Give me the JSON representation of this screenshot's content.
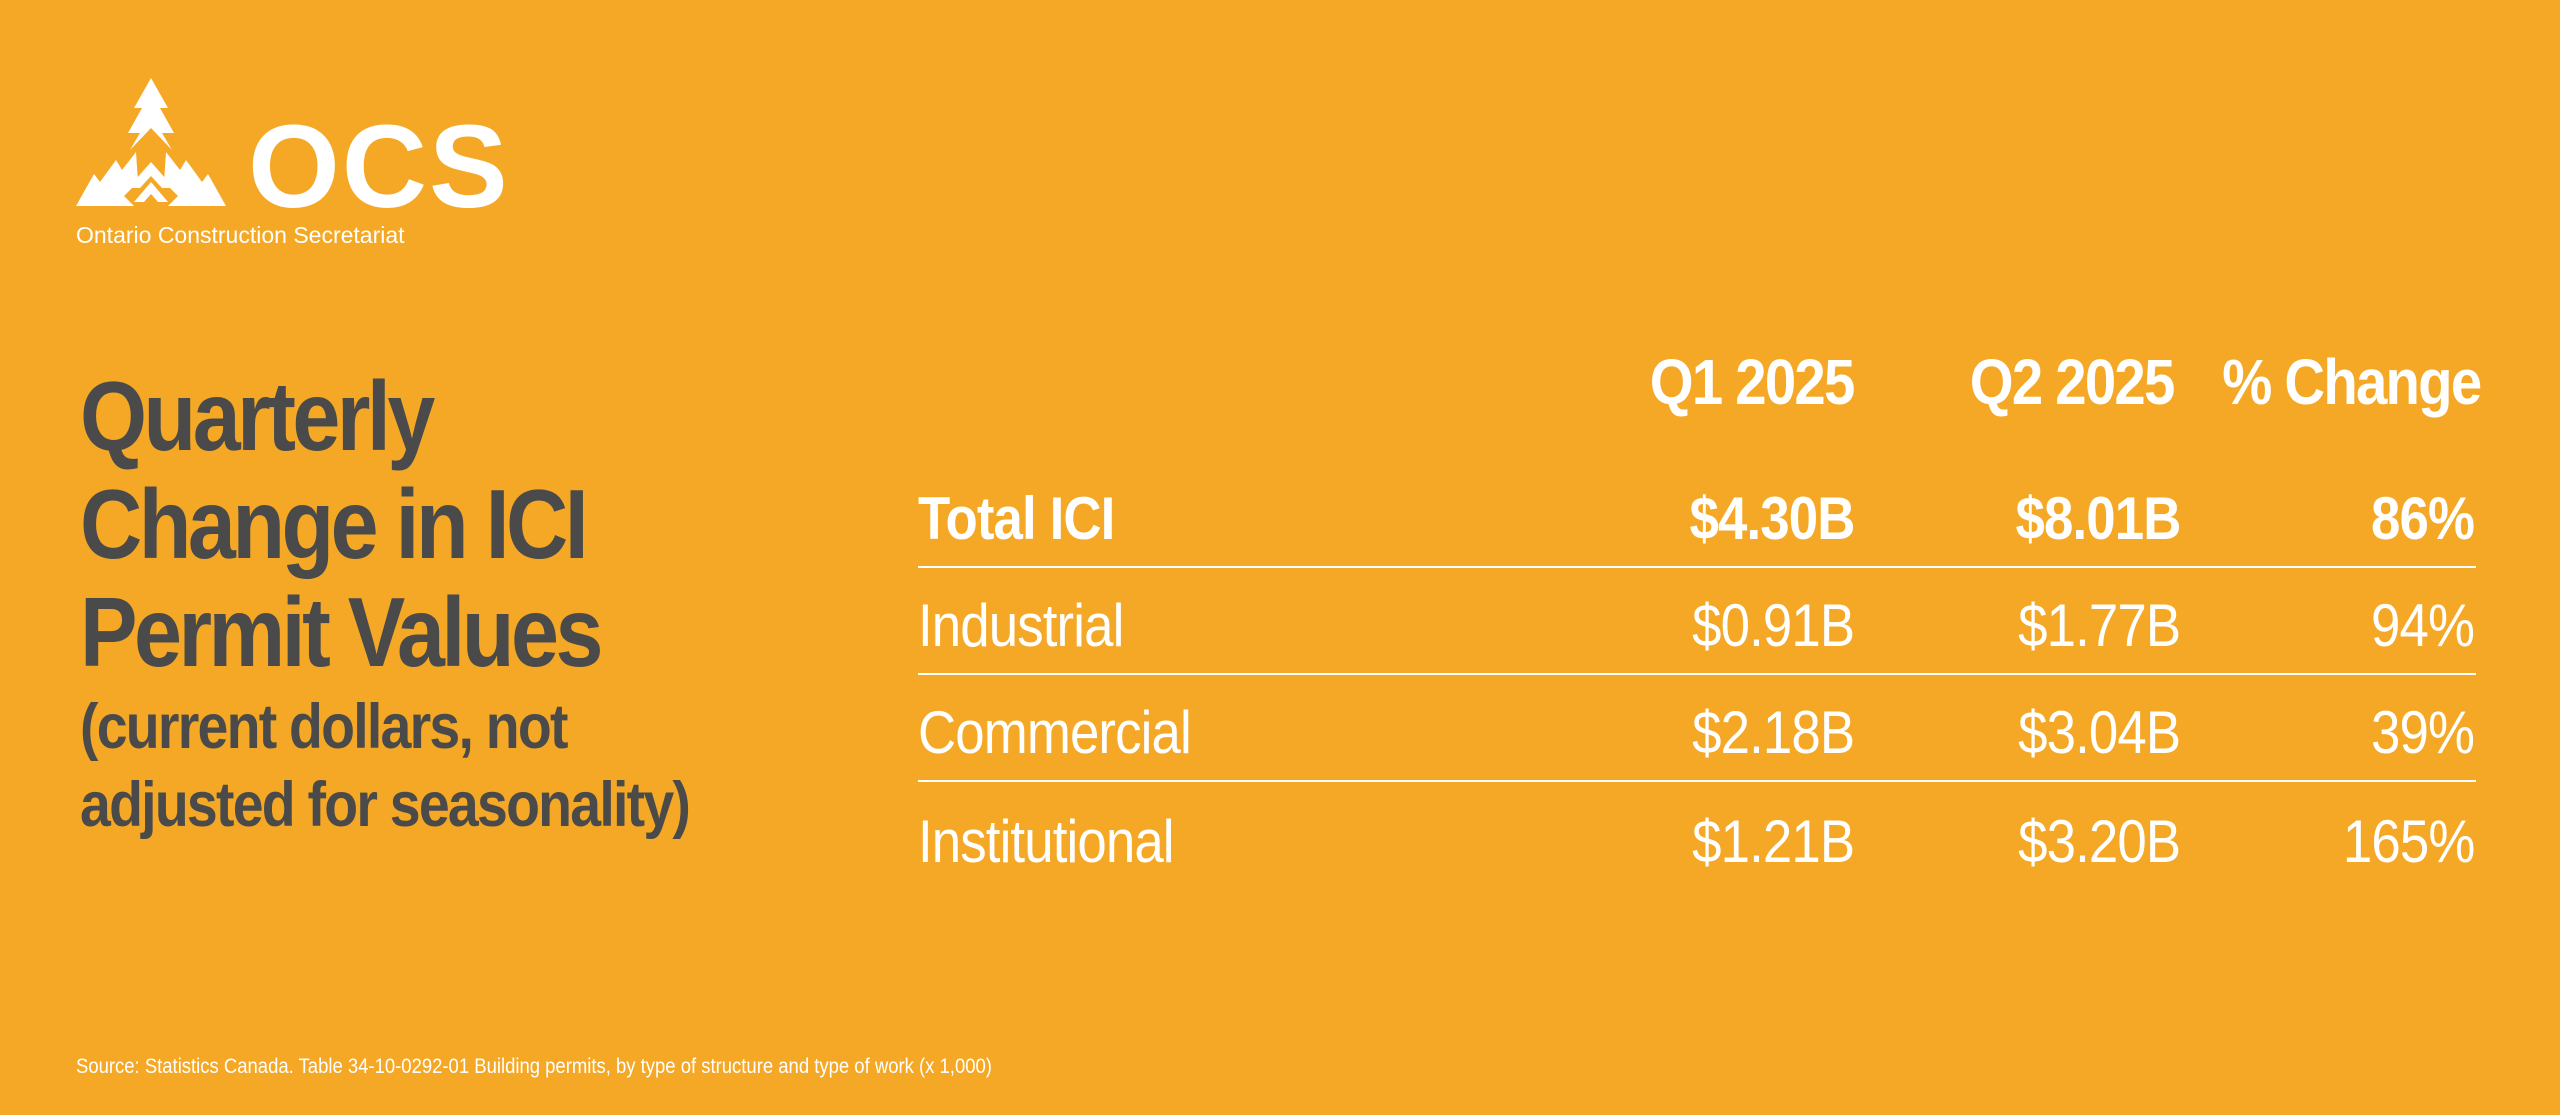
{
  "brand": {
    "name": "OCS",
    "subtitle": "Ontario Construction Secretariat",
    "logo_icon": "ocs-arrows-icon"
  },
  "title": {
    "lines": [
      "Quarterly",
      "Change in ICI",
      "Permit Values"
    ],
    "subtitle_lines": [
      "(current dollars, not",
      "adjusted for seasonality)"
    ]
  },
  "table": {
    "headers": [
      "Q1 2025",
      "Q2 2025",
      "% Change"
    ],
    "rows": [
      {
        "label": "Total ICI",
        "q1": "$4.30B",
        "q2": "$8.01B",
        "change": "86%"
      },
      {
        "label": "Industrial",
        "q1": "$0.91B",
        "q2": "$1.77B",
        "change": "94%"
      },
      {
        "label": "Commercial",
        "q1": "$2.18B",
        "q2": "$3.04B",
        "change": "39%"
      },
      {
        "label": "Institutional",
        "q1": "$1.21B",
        "q2": "$3.20B",
        "change": "165%"
      }
    ]
  },
  "source": "Source: Statistics Canada. Table 34-10-0292-01  Building permits, by type of structure and type of work (x 1,000)",
  "colors": {
    "background": "#F5A825",
    "title_text": "#4A4A4A",
    "table_text": "#FFFFFF"
  }
}
